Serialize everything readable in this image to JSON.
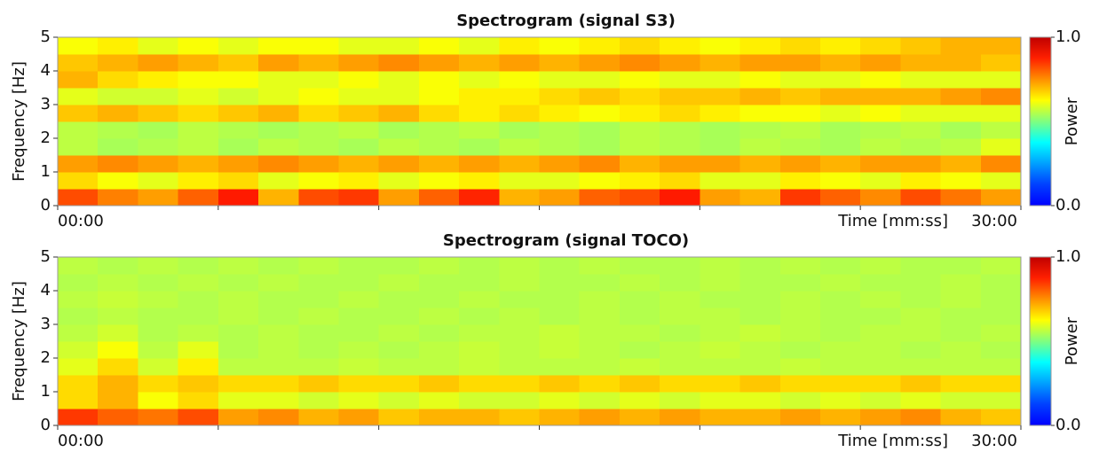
{
  "chart_data": [
    {
      "type": "heatmap",
      "title": "Spectrogram (signal  S3)",
      "xlabel": "Time  [mm:ss]",
      "ylabel": "Frequency  [Hz]",
      "colorbar_label": "Power",
      "colormap": "jet",
      "xlim": [
        0,
        30
      ],
      "xticks": [
        {
          "value": 0,
          "label": "00:00"
        },
        {
          "value": 30,
          "label": "30:00"
        }
      ],
      "xminor_ticks": [
        5,
        10,
        15,
        20,
        25
      ],
      "ylim": [
        0,
        5
      ],
      "yticks": [
        0,
        1,
        2,
        3,
        4,
        5
      ],
      "clim": [
        0,
        1
      ],
      "cticks": [
        {
          "value": 0,
          "label": "0.0"
        },
        {
          "value": 1,
          "label": "1.0"
        }
      ],
      "z": [
        [
          0.8,
          0.75,
          0.72,
          0.78,
          0.85,
          0.7,
          0.8,
          0.82,
          0.72,
          0.78,
          0.84,
          0.7,
          0.72,
          0.78,
          0.8,
          0.85,
          0.72,
          0.7,
          0.82,
          0.78,
          0.74,
          0.8,
          0.76,
          0.72
        ],
        [
          0.66,
          0.62,
          0.6,
          0.64,
          0.66,
          0.6,
          0.62,
          0.64,
          0.6,
          0.62,
          0.64,
          0.6,
          0.6,
          0.62,
          0.64,
          0.66,
          0.6,
          0.6,
          0.64,
          0.62,
          0.6,
          0.64,
          0.62,
          0.6
        ],
        [
          0.72,
          0.74,
          0.72,
          0.7,
          0.72,
          0.74,
          0.72,
          0.7,
          0.72,
          0.7,
          0.72,
          0.7,
          0.72,
          0.74,
          0.7,
          0.72,
          0.72,
          0.7,
          0.72,
          0.7,
          0.72,
          0.72,
          0.7,
          0.74
        ],
        [
          0.56,
          0.54,
          0.55,
          0.56,
          0.54,
          0.56,
          0.55,
          0.54,
          0.56,
          0.55,
          0.54,
          0.56,
          0.55,
          0.54,
          0.56,
          0.55,
          0.54,
          0.56,
          0.55,
          0.54,
          0.56,
          0.55,
          0.56,
          0.6
        ],
        [
          0.56,
          0.55,
          0.54,
          0.56,
          0.55,
          0.54,
          0.55,
          0.56,
          0.54,
          0.55,
          0.56,
          0.54,
          0.55,
          0.54,
          0.56,
          0.55,
          0.54,
          0.55,
          0.56,
          0.54,
          0.55,
          0.56,
          0.54,
          0.56
        ],
        [
          0.68,
          0.7,
          0.68,
          0.66,
          0.68,
          0.7,
          0.66,
          0.68,
          0.7,
          0.66,
          0.64,
          0.66,
          0.64,
          0.62,
          0.64,
          0.66,
          0.64,
          0.62,
          0.62,
          0.6,
          0.62,
          0.6,
          0.6,
          0.6
        ],
        [
          0.6,
          0.58,
          0.58,
          0.6,
          0.58,
          0.6,
          0.62,
          0.6,
          0.6,
          0.62,
          0.64,
          0.64,
          0.66,
          0.68,
          0.66,
          0.68,
          0.68,
          0.7,
          0.68,
          0.7,
          0.7,
          0.7,
          0.72,
          0.74
        ],
        [
          0.7,
          0.66,
          0.64,
          0.62,
          0.62,
          0.6,
          0.6,
          0.62,
          0.6,
          0.62,
          0.6,
          0.62,
          0.6,
          0.6,
          0.62,
          0.6,
          0.6,
          0.62,
          0.6,
          0.6,
          0.62,
          0.6,
          0.6,
          0.6
        ],
        [
          0.68,
          0.7,
          0.72,
          0.7,
          0.68,
          0.72,
          0.7,
          0.72,
          0.74,
          0.72,
          0.7,
          0.72,
          0.7,
          0.72,
          0.74,
          0.72,
          0.7,
          0.72,
          0.72,
          0.7,
          0.72,
          0.7,
          0.7,
          0.68
        ],
        [
          0.62,
          0.64,
          0.6,
          0.62,
          0.6,
          0.62,
          0.62,
          0.6,
          0.6,
          0.62,
          0.6,
          0.64,
          0.62,
          0.64,
          0.66,
          0.64,
          0.62,
          0.64,
          0.66,
          0.64,
          0.66,
          0.68,
          0.7,
          0.7
        ]
      ]
    },
    {
      "type": "heatmap",
      "title": "Spectrogram (signal TOCO)",
      "xlabel": "Time  [mm:ss]",
      "ylabel": "Frequency  [Hz]",
      "colorbar_label": "Power",
      "colormap": "jet",
      "xlim": [
        0,
        30
      ],
      "xticks": [
        {
          "value": 0,
          "label": "00:00"
        },
        {
          "value": 30,
          "label": "30:00"
        }
      ],
      "xminor_ticks": [
        5,
        10,
        15,
        20,
        25
      ],
      "ylim": [
        0,
        5
      ],
      "yticks": [
        0,
        1,
        2,
        3,
        4,
        5
      ],
      "clim": [
        0,
        1
      ],
      "cticks": [
        {
          "value": 0,
          "label": "0.0"
        },
        {
          "value": 1,
          "label": "1.0"
        }
      ],
      "z": [
        [
          0.82,
          0.78,
          0.76,
          0.8,
          0.72,
          0.74,
          0.7,
          0.72,
          0.68,
          0.7,
          0.7,
          0.68,
          0.7,
          0.72,
          0.7,
          0.72,
          0.7,
          0.7,
          0.72,
          0.7,
          0.72,
          0.74,
          0.7,
          0.68
        ],
        [
          0.66,
          0.7,
          0.62,
          0.66,
          0.6,
          0.6,
          0.58,
          0.6,
          0.58,
          0.6,
          0.58,
          0.58,
          0.6,
          0.58,
          0.6,
          0.58,
          0.6,
          0.6,
          0.58,
          0.6,
          0.58,
          0.6,
          0.58,
          0.58
        ],
        [
          0.66,
          0.7,
          0.66,
          0.68,
          0.66,
          0.66,
          0.68,
          0.66,
          0.66,
          0.68,
          0.66,
          0.66,
          0.68,
          0.66,
          0.68,
          0.66,
          0.66,
          0.68,
          0.66,
          0.66,
          0.66,
          0.68,
          0.66,
          0.66
        ],
        [
          0.6,
          0.66,
          0.58,
          0.64,
          0.56,
          0.56,
          0.56,
          0.57,
          0.56,
          0.56,
          0.57,
          0.56,
          0.56,
          0.56,
          0.57,
          0.56,
          0.56,
          0.56,
          0.57,
          0.56,
          0.56,
          0.56,
          0.56,
          0.56
        ],
        [
          0.58,
          0.62,
          0.56,
          0.6,
          0.55,
          0.56,
          0.55,
          0.56,
          0.55,
          0.56,
          0.57,
          0.56,
          0.57,
          0.56,
          0.55,
          0.56,
          0.57,
          0.56,
          0.55,
          0.56,
          0.56,
          0.55,
          0.56,
          0.55
        ],
        [
          0.56,
          0.58,
          0.55,
          0.56,
          0.55,
          0.56,
          0.55,
          0.55,
          0.56,
          0.55,
          0.56,
          0.56,
          0.57,
          0.56,
          0.56,
          0.55,
          0.56,
          0.57,
          0.56,
          0.55,
          0.56,
          0.56,
          0.55,
          0.56
        ],
        [
          0.55,
          0.56,
          0.55,
          0.55,
          0.56,
          0.55,
          0.56,
          0.55,
          0.55,
          0.56,
          0.55,
          0.56,
          0.55,
          0.56,
          0.55,
          0.56,
          0.56,
          0.55,
          0.56,
          0.55,
          0.55,
          0.56,
          0.55,
          0.55
        ],
        [
          0.56,
          0.57,
          0.56,
          0.55,
          0.56,
          0.55,
          0.55,
          0.56,
          0.55,
          0.55,
          0.56,
          0.55,
          0.55,
          0.56,
          0.55,
          0.56,
          0.55,
          0.55,
          0.56,
          0.55,
          0.56,
          0.55,
          0.56,
          0.55
        ],
        [
          0.55,
          0.56,
          0.55,
          0.56,
          0.55,
          0.56,
          0.55,
          0.55,
          0.56,
          0.55,
          0.55,
          0.56,
          0.55,
          0.55,
          0.56,
          0.55,
          0.56,
          0.55,
          0.55,
          0.56,
          0.55,
          0.55,
          0.56,
          0.55
        ],
        [
          0.56,
          0.55,
          0.56,
          0.55,
          0.56,
          0.55,
          0.56,
          0.55,
          0.55,
          0.56,
          0.55,
          0.56,
          0.55,
          0.56,
          0.55,
          0.55,
          0.56,
          0.55,
          0.56,
          0.55,
          0.56,
          0.55,
          0.55,
          0.56
        ]
      ]
    }
  ]
}
